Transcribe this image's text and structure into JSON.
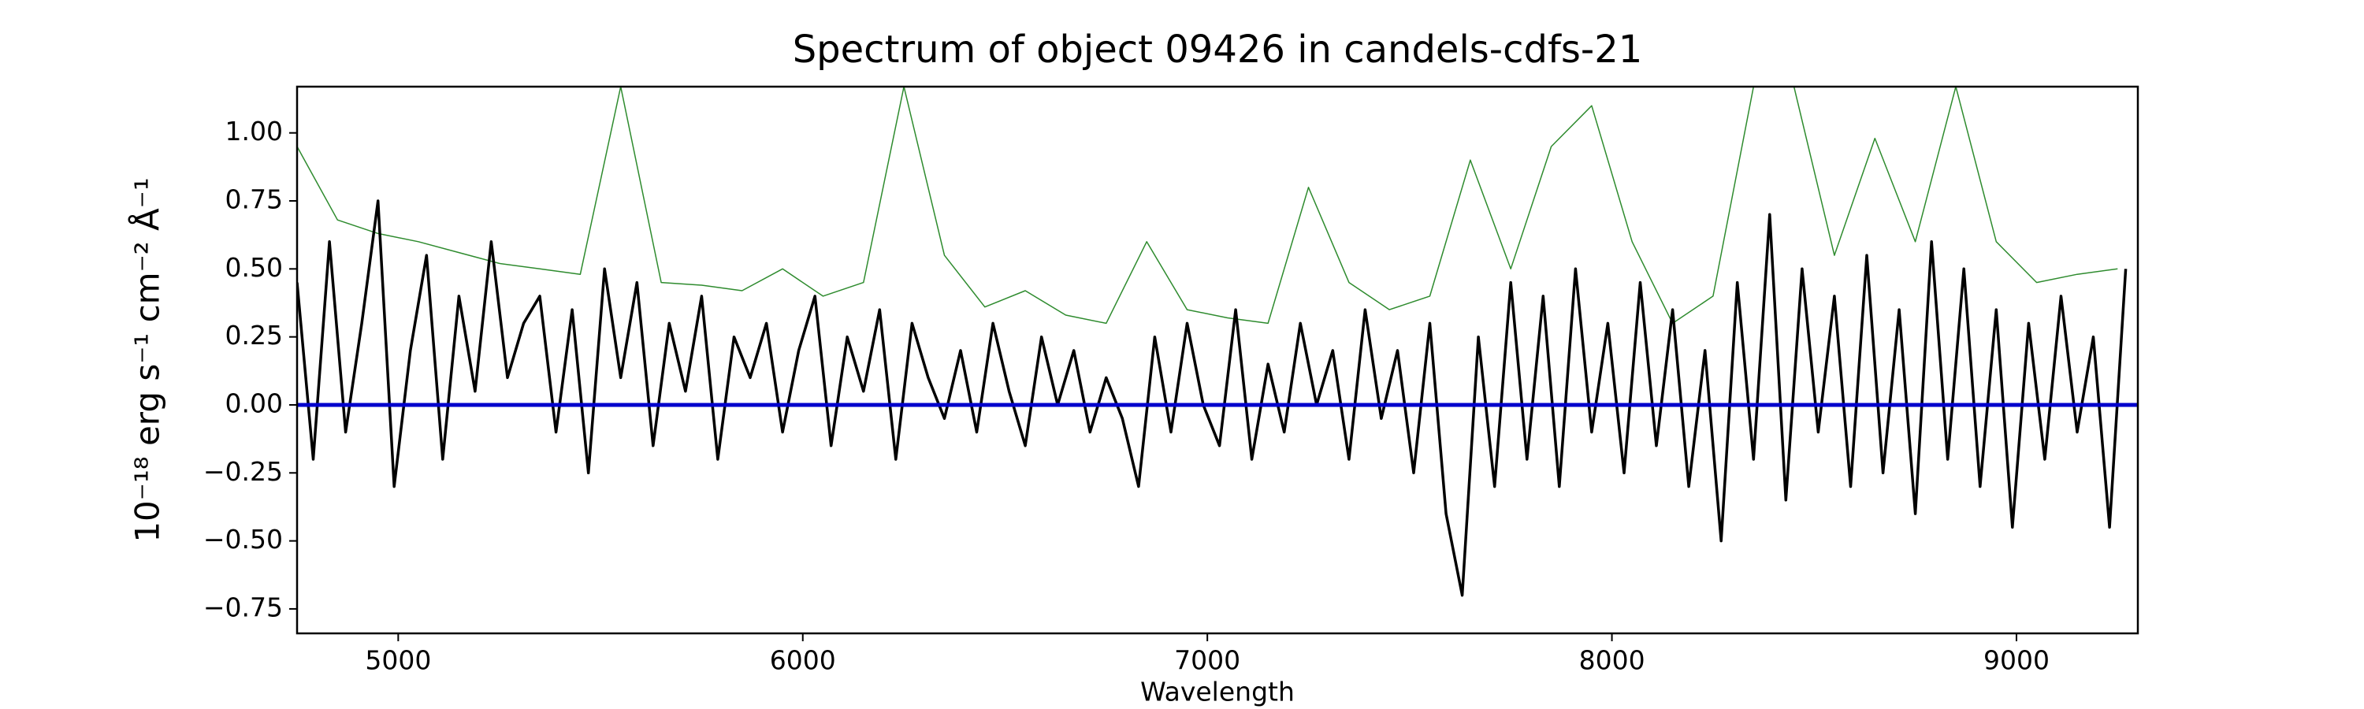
{
  "chart_data": {
    "type": "line",
    "title": "Spectrum of object 09426 in candels-cdfs-21",
    "xlabel": "Wavelength",
    "ylabel": "10⁻¹⁸ erg s⁻¹ cm⁻² Å⁻¹",
    "xlim": [
      4750,
      9300
    ],
    "ylim": [
      -0.84,
      1.17
    ],
    "xticks": [
      5000,
      6000,
      7000,
      8000,
      9000
    ],
    "yticks": [
      {
        "value": -0.75,
        "label": "−0.75"
      },
      {
        "value": -0.5,
        "label": "−0.50"
      },
      {
        "value": -0.25,
        "label": "−0.25"
      },
      {
        "value": 0,
        "label": "0.00"
      },
      {
        "value": 0.25,
        "label": "0.25"
      },
      {
        "value": 0.5,
        "label": "0.50"
      },
      {
        "value": 0.75,
        "label": "0.75"
      },
      {
        "value": 1,
        "label": "1.00"
      }
    ],
    "series": [
      {
        "color": "#2e8b2e",
        "width": 1.5,
        "x": [
          4750,
          4850,
          4950,
          5050,
          5150,
          5250,
          5350,
          5450,
          5550,
          5650,
          5750,
          5850,
          5950,
          6050,
          6150,
          6250,
          6350,
          6450,
          6550,
          6650,
          6750,
          6850,
          6950,
          7050,
          7150,
          7250,
          7350,
          7450,
          7550,
          7650,
          7750,
          7850,
          7950,
          8050,
          8150,
          8250,
          8350,
          8450,
          8550,
          8650,
          8750,
          8850,
          8950,
          9050,
          9150,
          9250
        ],
        "values": [
          0.95,
          0.68,
          0.63,
          0.6,
          0.56,
          0.52,
          0.5,
          0.48,
          1.17,
          0.45,
          0.44,
          0.42,
          0.5,
          0.4,
          0.45,
          1.17,
          0.55,
          0.36,
          0.42,
          0.33,
          0.3,
          0.6,
          0.35,
          0.32,
          0.3,
          0.8,
          0.45,
          0.35,
          0.4,
          0.9,
          0.5,
          0.95,
          1.1,
          0.6,
          0.3,
          0.4,
          1.17,
          1.17,
          0.55,
          0.98,
          0.6,
          1.17,
          0.6,
          0.45,
          0.48,
          0.5
        ]
      },
      {
        "color": "#000000",
        "width": 3.5,
        "x": [
          4750,
          4790,
          4830,
          4870,
          4910,
          4950,
          4990,
          5030,
          5070,
          5110,
          5150,
          5190,
          5230,
          5270,
          5310,
          5350,
          5390,
          5430,
          5470,
          5510,
          5550,
          5590,
          5630,
          5670,
          5710,
          5750,
          5790,
          5830,
          5870,
          5910,
          5950,
          5990,
          6030,
          6070,
          6110,
          6150,
          6190,
          6230,
          6270,
          6310,
          6350,
          6390,
          6430,
          6470,
          6510,
          6550,
          6590,
          6630,
          6670,
          6710,
          6750,
          6790,
          6830,
          6870,
          6910,
          6950,
          6990,
          7030,
          7070,
          7110,
          7150,
          7190,
          7230,
          7270,
          7310,
          7350,
          7390,
          7430,
          7470,
          7510,
          7550,
          7590,
          7630,
          7670,
          7710,
          7750,
          7790,
          7830,
          7870,
          7910,
          7950,
          7990,
          8030,
          8070,
          8110,
          8150,
          8190,
          8230,
          8270,
          8310,
          8350,
          8390,
          8430,
          8470,
          8510,
          8550,
          8590,
          8630,
          8670,
          8710,
          8750,
          8790,
          8830,
          8870,
          8910,
          8950,
          8990,
          9030,
          9070,
          9110,
          9150,
          9190,
          9230,
          9270
        ],
        "values": [
          0.45,
          -0.2,
          0.6,
          -0.1,
          0.3,
          0.75,
          -0.3,
          0.2,
          0.55,
          -0.2,
          0.4,
          0.05,
          0.6,
          0.1,
          0.3,
          0.4,
          -0.1,
          0.35,
          -0.25,
          0.5,
          0.1,
          0.45,
          -0.15,
          0.3,
          0.05,
          0.4,
          -0.2,
          0.25,
          0.1,
          0.3,
          -0.1,
          0.2,
          0.4,
          -0.15,
          0.25,
          0.05,
          0.35,
          -0.2,
          0.3,
          0.1,
          -0.05,
          0.2,
          -0.1,
          0.3,
          0.05,
          -0.15,
          0.25,
          0.0,
          0.2,
          -0.1,
          0.1,
          -0.05,
          -0.3,
          0.25,
          -0.1,
          0.3,
          0.0,
          -0.15,
          0.35,
          -0.2,
          0.15,
          -0.1,
          0.3,
          0.0,
          0.2,
          -0.2,
          0.35,
          -0.05,
          0.2,
          -0.25,
          0.3,
          -0.4,
          -0.7,
          0.25,
          -0.3,
          0.45,
          -0.2,
          0.4,
          -0.3,
          0.5,
          -0.1,
          0.3,
          -0.25,
          0.45,
          -0.15,
          0.35,
          -0.3,
          0.2,
          -0.5,
          0.45,
          -0.2,
          0.7,
          -0.35,
          0.5,
          -0.1,
          0.4,
          -0.3,
          0.55,
          -0.25,
          0.35,
          -0.4,
          0.6,
          -0.2,
          0.5,
          -0.3,
          0.35,
          -0.45,
          0.3,
          -0.2,
          0.4,
          -0.1,
          0.25,
          -0.45,
          0.5
        ]
      },
      {
        "color": "#0000cc",
        "width": 5,
        "x": [
          4750,
          9300
        ],
        "values": [
          0,
          0
        ]
      }
    ]
  }
}
